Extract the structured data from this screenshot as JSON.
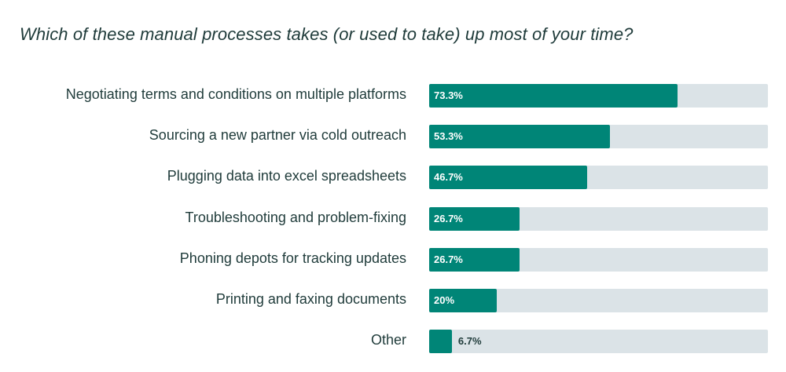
{
  "title": "Which of these manual processes takes (or used to take) up most of your time?",
  "chart_data": {
    "type": "bar",
    "orientation": "horizontal",
    "title": "Which of these manual processes takes (or used to take) up most of your time?",
    "categories": [
      "Negotiating terms and conditions on multiple platforms",
      "Sourcing a new partner via cold outreach",
      "Plugging data into excel spreadsheets",
      "Troubleshooting and problem-fixing",
      "Phoning depots for tracking updates",
      "Printing and faxing documents",
      "Other"
    ],
    "values": [
      73.3,
      53.3,
      46.7,
      26.7,
      26.7,
      20,
      6.7
    ],
    "value_labels": [
      "73.3%",
      "53.3%",
      "46.7%",
      "26.7%",
      "26.7%",
      "20%",
      "6.7%"
    ],
    "unit": "%",
    "xlim": [
      0,
      100
    ],
    "grid": false,
    "legend": "none",
    "colors": {
      "bar": "#008577",
      "track": "#dbe3e7",
      "label_inside": "#ffffff",
      "label_outside": "#1f3b3a",
      "text": "#1f3b3a"
    }
  }
}
